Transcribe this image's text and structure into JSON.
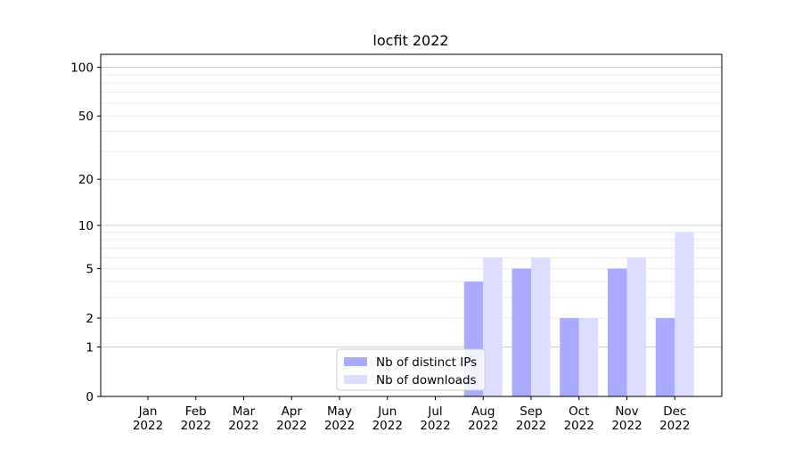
{
  "chart_data": {
    "type": "bar",
    "title": "locfit 2022",
    "xlabel": "",
    "ylabel": "",
    "yscale": "symlog",
    "ylim": [
      0,
      120
    ],
    "yticks": [
      0,
      1,
      2,
      5,
      10,
      20,
      50,
      100
    ],
    "categories": [
      [
        "Jan",
        "2022"
      ],
      [
        "Feb",
        "2022"
      ],
      [
        "Mar",
        "2022"
      ],
      [
        "Apr",
        "2022"
      ],
      [
        "May",
        "2022"
      ],
      [
        "Jun",
        "2022"
      ],
      [
        "Jul",
        "2022"
      ],
      [
        "Aug",
        "2022"
      ],
      [
        "Sep",
        "2022"
      ],
      [
        "Oct",
        "2022"
      ],
      [
        "Nov",
        "2022"
      ],
      [
        "Dec",
        "2022"
      ]
    ],
    "series": [
      {
        "name": "Nb of distinct IPs",
        "color": "#aaaaff",
        "values": [
          0,
          0,
          0,
          0,
          0,
          0,
          0,
          4,
          5,
          2,
          5,
          2
        ]
      },
      {
        "name": "Nb of downloads",
        "color": "#ddddff",
        "values": [
          0,
          0,
          0,
          0,
          0,
          0,
          0,
          6,
          6,
          2,
          6,
          9
        ]
      }
    ],
    "grid": true,
    "legend_position": "bottom-center"
  }
}
